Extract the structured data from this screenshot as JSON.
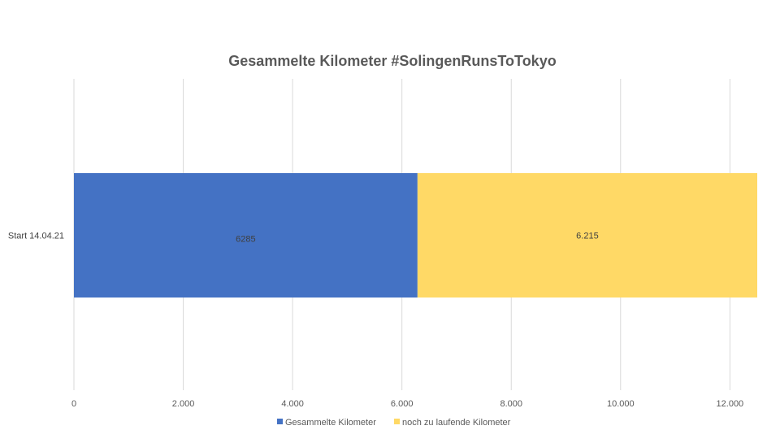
{
  "chart_data": {
    "type": "bar",
    "orientation": "horizontal",
    "stacked": true,
    "title": "Gesammelte Kilometer #SolingenRunsToTokyo",
    "categories": [
      "Start 14.04.21"
    ],
    "series": [
      {
        "name": "Gesammelte Kilometer",
        "values": [
          6285
        ],
        "color": "#4472C4",
        "data_label": "6285"
      },
      {
        "name": "noch zu laufende Kilometer",
        "values": [
          6215
        ],
        "color": "#FFD966",
        "data_label": "6.215"
      }
    ],
    "x_ticks": [
      0,
      2000,
      4000,
      6000,
      8000,
      10000,
      12000
    ],
    "x_tick_labels": [
      "0",
      "2.000",
      "4.000",
      "6.000",
      "8.000",
      "10.000",
      "12.000"
    ],
    "xlim": [
      0,
      12500
    ],
    "grid": true,
    "legend_position": "bottom"
  }
}
